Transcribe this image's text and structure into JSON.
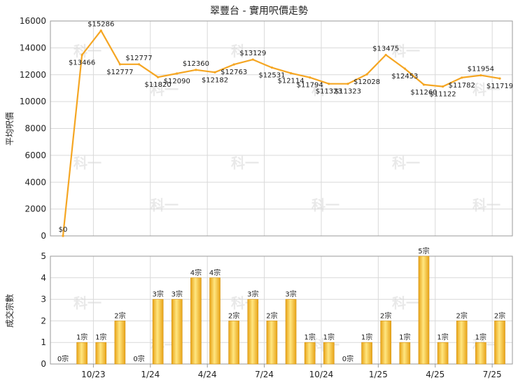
{
  "chart_data": [
    {
      "type": "line",
      "title": "翠豐台 - 實用呎價走勢",
      "ylabel": "平均呎價",
      "ylim": [
        0,
        16000
      ],
      "yticks": [
        0,
        2000,
        4000,
        6000,
        8000,
        10000,
        12000,
        14000,
        16000
      ],
      "xticks": [
        "10/23",
        "1/24",
        "4/24",
        "7/24",
        "10/24",
        "1/25",
        "4/25",
        "7/25"
      ],
      "grid": true,
      "colors": {
        "line": "#f5a623",
        "grid": "#d9d9d9",
        "axis": "#9a9a9a"
      },
      "series": [
        {
          "values": [
            0,
            13466,
            15286,
            12777,
            12777,
            11820,
            12090,
            12360,
            12182,
            12763,
            13129,
            12531,
            12114,
            11794,
            11323,
            11323,
            12028,
            13475,
            12453,
            11260,
            11122,
            11782,
            11954,
            11719
          ],
          "labels": [
            "$0",
            "$13466",
            "$15286",
            "$12777",
            "$12777",
            "$11820",
            "$12090",
            "$12360",
            "$12182",
            "$12763",
            "$13129",
            "$12531",
            "$12114",
            "$11794",
            "$11323",
            "$11323",
            "$12028",
            "$13475",
            "$12453",
            "$11260",
            "$11122",
            "$11782",
            "$11954",
            "$11719"
          ]
        }
      ]
    },
    {
      "type": "bar",
      "ylabel": "成交宗數",
      "ylim": [
        0,
        5
      ],
      "yticks": [
        0,
        1,
        2,
        3,
        4,
        5
      ],
      "xticks": [
        "10/23",
        "1/24",
        "4/24",
        "7/24",
        "10/24",
        "1/25",
        "4/25",
        "7/25"
      ],
      "grid": true,
      "colors": {
        "bar_light": "#ffd966",
        "bar_dark": "#e8a317",
        "grid": "#d9d9d9",
        "axis": "#9a9a9a"
      },
      "series": [
        {
          "values": [
            0,
            1,
            1,
            2,
            0,
            3,
            3,
            4,
            4,
            2,
            3,
            2,
            3,
            1,
            1,
            0,
            1,
            2,
            1,
            5,
            1,
            2,
            1,
            2
          ],
          "labels": [
            "0宗",
            "1宗",
            "1宗",
            "2宗",
            "0宗",
            "3宗",
            "3宗",
            "4宗",
            "4宗",
            "2宗",
            "3宗",
            "2宗",
            "3宗",
            "1宗",
            "1宗",
            "0宗",
            "1宗",
            "2宗",
            "1宗",
            "5宗",
            "1宗",
            "2宗",
            "1宗",
            "2宗"
          ]
        }
      ]
    }
  ],
  "watermark": "科一"
}
